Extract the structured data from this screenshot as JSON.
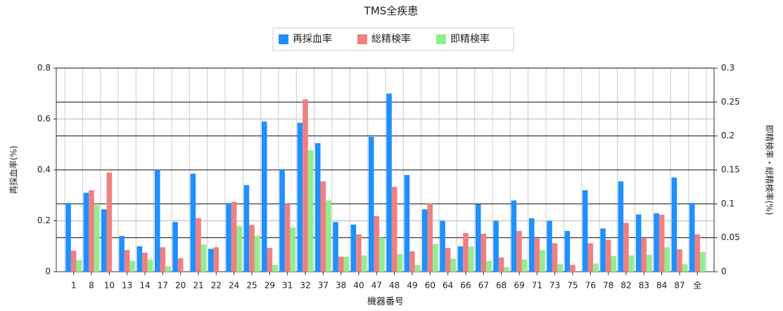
{
  "chart_data": {
    "type": "bar",
    "title": "TMS全疾患",
    "x_label": "機器番号",
    "y_label": "再採血率(%)",
    "y2_label": "即精検率・総精検率(%)",
    "categories": [
      "1",
      "8",
      "10",
      "13",
      "14",
      "17",
      "20",
      "21",
      "22",
      "24",
      "25",
      "29",
      "31",
      "32",
      "37",
      "38",
      "40",
      "47",
      "48",
      "49",
      "60",
      "64",
      "66",
      "67",
      "68",
      "69",
      "71",
      "73",
      "75",
      "76",
      "78",
      "82",
      "83",
      "84",
      "87",
      "全"
    ],
    "series": [
      {
        "name": "再採血率",
        "color": "#1e90ff",
        "values": [
          0.27,
          0.31,
          0.245,
          0.14,
          0.1,
          0.4,
          0.195,
          0.385,
          0.09,
          0.27,
          0.34,
          0.59,
          0.4,
          0.585,
          0.505,
          0.195,
          0.185,
          0.53,
          0.7,
          0.38,
          0.245,
          0.2,
          0.1,
          0.265,
          0.2,
          0.28,
          0.21,
          0.2,
          0.16,
          0.32,
          0.17,
          0.355,
          0.225,
          0.23,
          0.37,
          0.27
        ]
      },
      {
        "name": "総精検率",
        "color": "#f08080",
        "axis": "y2",
        "values": [
          0.031,
          0.12,
          0.146,
          0.032,
          0.028,
          0.036,
          0.02,
          0.079,
          0.036,
          0.103,
          0.069,
          0.035,
          0.1,
          0.254,
          0.133,
          0.022,
          0.055,
          0.082,
          0.125,
          0.03,
          0.101,
          0.035,
          0.057,
          0.056,
          0.021,
          0.06,
          0.049,
          0.042,
          0.01,
          0.042,
          0.047,
          0.072,
          0.049,
          0.084,
          0.033,
          0.055
        ]
      },
      {
        "name": "即精検率",
        "color": "#90ee90",
        "axis": "y2",
        "values": [
          0.017,
          0.098,
          0,
          0.016,
          0.018,
          0.008,
          0,
          0.04,
          0,
          0.067,
          0.053,
          0.01,
          0.065,
          0.179,
          0.105,
          0.022,
          0.024,
          0.05,
          0.026,
          0.01,
          0.041,
          0.019,
          0.037,
          0.016,
          0.007,
          0.018,
          0.032,
          0.011,
          0,
          0.012,
          0.023,
          0.024,
          0.025,
          0.036,
          0.011,
          0.029
        ]
      }
    ],
    "ylim": [
      0,
      0.8
    ],
    "yticks": [
      0,
      0.2,
      0.4,
      0.6,
      0.8
    ],
    "y2lim": [
      0,
      0.3
    ],
    "y2ticks": [
      0,
      0.05,
      0.1,
      0.15,
      0.2,
      0.25,
      0.3
    ],
    "grid": true,
    "legend": "top"
  }
}
